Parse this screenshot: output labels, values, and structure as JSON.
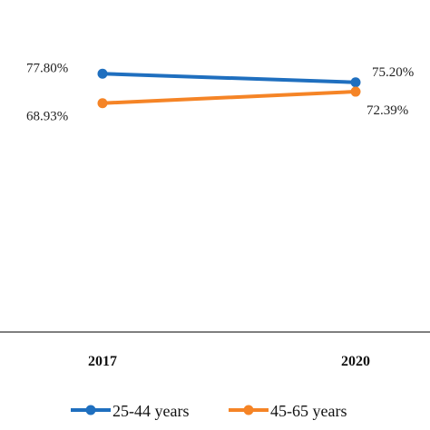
{
  "chart_data": {
    "type": "line",
    "categories": [
      "2017",
      "2020"
    ],
    "series": [
      {
        "name": "25-44 years",
        "values": [
          77.8,
          75.2
        ],
        "labels": [
          "77.80%",
          "75.20%"
        ],
        "color": "#1f6fbf"
      },
      {
        "name": "45-65 years",
        "values": [
          68.93,
          72.39
        ],
        "labels": [
          "68.93%",
          "72.39%"
        ],
        "color": "#f58426"
      }
    ],
    "title": "",
    "xlabel": "",
    "ylabel": "",
    "ylim": [
      0,
      100
    ],
    "grid": false,
    "legend_position": "bottom"
  }
}
